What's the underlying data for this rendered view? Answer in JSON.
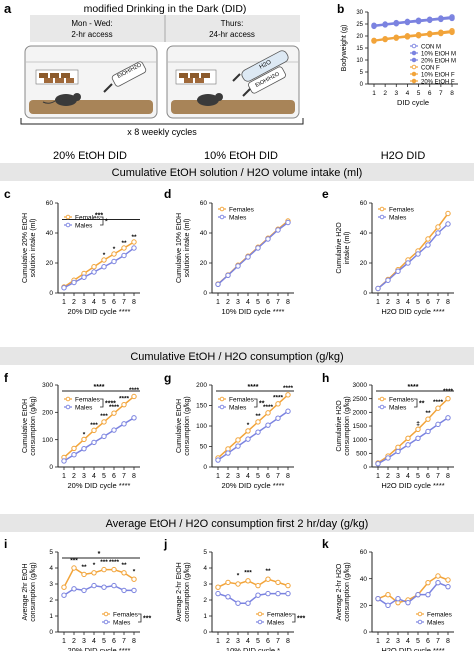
{
  "colors": {
    "female": "#f2a43a",
    "male": "#7b83e0",
    "banner": "#e6e6e6",
    "axis": "#222222"
  },
  "panel_a": {
    "letter": "a",
    "title": "modified Drinking in the Dark (DID)",
    "left_caption_1": "Mon - Wed:",
    "left_caption_2": "2-hr access",
    "right_caption_1": "Thurs:",
    "right_caption_2": "24-hr access",
    "bottle_label_1": "EtOH/H2O",
    "bottle_label_2": "H2O",
    "bottle_label_3": "EtOH/H2O",
    "cycles": "x 8 weekly cycles",
    "icons": [
      "cage-icon",
      "mouse-icon",
      "bottle-icon",
      "food-pellet-icon"
    ]
  },
  "column_titles": [
    "20% EtOH DID",
    "10% EtOH DID",
    "H2O DID"
  ],
  "sections": [
    "Cumulative EtOH solution / H2O volume intake (ml)",
    "Cumulative EtOH / H2O consumption (g/kg)",
    "Average  EtOH / H2O consumption first 2 hr/day (g/kg)"
  ],
  "chart_data": [
    {
      "id": "b",
      "type": "line",
      "xlabel": "DID cycle",
      "ylabel": "Bodyweight (g)",
      "x": [
        1,
        2,
        3,
        4,
        5,
        6,
        7,
        8
      ],
      "ylim": [
        0,
        30
      ],
      "yticks": [
        0,
        5,
        10,
        15,
        20,
        25,
        30
      ],
      "legend_position": "bottom-right",
      "series": [
        {
          "name": "CON M",
          "sex": "male",
          "style": "open",
          "values": [
            24.5,
            25,
            25.6,
            26.1,
            26.6,
            27,
            27.5,
            28
          ]
        },
        {
          "name": "10% EtOH M",
          "sex": "male",
          "style": "filled",
          "values": [
            24.2,
            24.8,
            25.4,
            25.9,
            26.3,
            26.8,
            27.2,
            27.6
          ]
        },
        {
          "name": "20% EtOH M",
          "sex": "male",
          "style": "filled",
          "values": [
            24,
            24.6,
            25.1,
            25.6,
            26,
            26.5,
            26.9,
            27.3
          ]
        },
        {
          "name": "CON F",
          "sex": "female",
          "style": "open",
          "values": [
            18.2,
            18.9,
            19.5,
            20.1,
            20.6,
            21.1,
            21.6,
            22.2
          ]
        },
        {
          "name": "10% EtOH F",
          "sex": "female",
          "style": "filled",
          "values": [
            18,
            18.7,
            19.3,
            19.8,
            20.3,
            20.8,
            21.3,
            21.8
          ]
        },
        {
          "name": "20% EtOH F",
          "sex": "female",
          "style": "filled",
          "values": [
            17.9,
            18.5,
            19.1,
            19.6,
            20.1,
            20.6,
            21,
            21.5
          ]
        }
      ]
    },
    {
      "id": "c",
      "type": "line",
      "xlabel": "20% DID cycle ****",
      "ylabel": "Cumulative 20% EtOH solution intake (ml)",
      "x": [
        1,
        2,
        3,
        4,
        5,
        6,
        7,
        8
      ],
      "ylim": [
        0,
        60
      ],
      "yticks": [
        0,
        20,
        40,
        60
      ],
      "legend_position": "top-left",
      "series": [
        {
          "name": "Females",
          "sex": "female",
          "values": [
            4,
            8.5,
            13,
            17.5,
            22,
            26,
            30,
            34
          ]
        },
        {
          "name": "Males",
          "sex": "male",
          "values": [
            3.5,
            7,
            10.5,
            14,
            17.5,
            21,
            25,
            30
          ]
        }
      ],
      "annotations": [
        {
          "text": "*",
          "x": 5,
          "y": 24
        },
        {
          "text": "*",
          "x": 6,
          "y": 28
        },
        {
          "text": "**",
          "x": 7,
          "y": 32
        },
        {
          "text": "**",
          "x": 8,
          "y": 36
        }
      ],
      "brackets": [
        {
          "text": "*"
        }
      ],
      "lines": [
        {
          "text": "***",
          "y": 49
        }
      ]
    },
    {
      "id": "d",
      "type": "line",
      "xlabel": "10% DID cycle ****",
      "ylabel": "Cumulative 10% EtOH solution intake (ml)",
      "x": [
        1,
        2,
        3,
        4,
        5,
        6,
        7,
        8
      ],
      "ylim": [
        0,
        60
      ],
      "yticks": [
        0,
        20,
        40,
        60
      ],
      "legend_position": "top-left",
      "series": [
        {
          "name": "Females",
          "sex": "female",
          "values": [
            6,
            12,
            18.5,
            24.5,
            30.5,
            36.5,
            42.5,
            48
          ]
        },
        {
          "name": "Males",
          "sex": "male",
          "values": [
            5.8,
            11.8,
            18,
            24,
            30,
            36,
            42,
            47
          ]
        }
      ]
    },
    {
      "id": "e",
      "type": "line",
      "xlabel": "H2O DID cycle ****",
      "ylabel": "Cumulative H2O intake (ml)",
      "x": [
        1,
        2,
        3,
        4,
        5,
        6,
        7,
        8
      ],
      "ylim": [
        0,
        60
      ],
      "yticks": [
        0,
        20,
        40,
        60
      ],
      "legend_position": "top-left",
      "series": [
        {
          "name": "Females",
          "sex": "female",
          "values": [
            3,
            9,
            15.5,
            22,
            28,
            36,
            44,
            53
          ]
        },
        {
          "name": "Males",
          "sex": "male",
          "values": [
            3,
            8.5,
            14.5,
            20,
            26,
            32,
            40,
            46
          ]
        }
      ]
    },
    {
      "id": "f",
      "type": "line",
      "xlabel": "20% DID cycle ****",
      "ylabel": "Cumulative EtOH consumption (g/kg)",
      "x": [
        1,
        2,
        3,
        4,
        5,
        6,
        7,
        8
      ],
      "ylim": [
        0,
        300
      ],
      "yticks": [
        0,
        100,
        200,
        300
      ],
      "legend_position": "top-left",
      "series": [
        {
          "name": "Females",
          "sex": "female",
          "values": [
            35,
            68,
            101,
            134,
            165,
            197,
            228,
            258
          ]
        },
        {
          "name": "Males",
          "sex": "male",
          "values": [
            22,
            45,
            67,
            90,
            112,
            135,
            158,
            180
          ]
        }
      ],
      "annotations": [
        {
          "text": "*",
          "x": 3,
          "y": 112
        },
        {
          "text": "***",
          "x": 4,
          "y": 147
        },
        {
          "text": "***",
          "x": 5,
          "y": 180
        },
        {
          "text": "****",
          "x": 6,
          "y": 213
        },
        {
          "text": "****",
          "x": 7,
          "y": 244
        },
        {
          "text": "****",
          "x": 8,
          "y": 274
        }
      ],
      "brackets": [
        {
          "text": "****"
        }
      ],
      "lines": [
        {
          "text": "****",
          "y": 345
        }
      ]
    },
    {
      "id": "g",
      "type": "line",
      "xlabel": "20% DID cycle ****",
      "ylabel": "Cumulative EtOH consumption (g/kg)",
      "x": [
        1,
        2,
        3,
        4,
        5,
        6,
        7,
        8
      ],
      "ylim": [
        0,
        200
      ],
      "yticks": [
        0,
        50,
        100,
        150,
        200
      ],
      "legend_position": "top-left",
      "series": [
        {
          "name": "Females",
          "sex": "female",
          "values": [
            22,
            44,
            66,
            88,
            110,
            132,
            154,
            176
          ]
        },
        {
          "name": "Males",
          "sex": "male",
          "values": [
            17,
            34,
            51,
            68,
            85,
            102,
            119,
            136
          ]
        }
      ],
      "annotations": [
        {
          "text": "*",
          "x": 4,
          "y": 97
        },
        {
          "text": "**",
          "x": 5,
          "y": 120
        },
        {
          "text": "****",
          "x": 6,
          "y": 142
        },
        {
          "text": "****",
          "x": 7,
          "y": 165
        },
        {
          "text": "****",
          "x": 8,
          "y": 188
        }
      ],
      "brackets": [
        {
          "text": "**"
        }
      ],
      "lines": [
        {
          "text": "****",
          "y": 228
        }
      ]
    },
    {
      "id": "h",
      "type": "line",
      "xlabel": "H2O DID cycle ****",
      "ylabel": "Cumulative H2O consumption (g/kg)",
      "x": [
        1,
        2,
        3,
        4,
        5,
        6,
        7,
        8
      ],
      "ylim": [
        0,
        3000
      ],
      "yticks": [
        0,
        500,
        1000,
        1500,
        2000,
        2500,
        3000
      ],
      "legend_position": "top-left",
      "series": [
        {
          "name": "Females",
          "sex": "female",
          "values": [
            150,
            400,
            720,
            1050,
            1380,
            1750,
            2150,
            2500
          ]
        },
        {
          "name": "Males",
          "sex": "male",
          "values": [
            120,
            330,
            570,
            810,
            1050,
            1300,
            1560,
            1800
          ]
        }
      ],
      "annotations": [
        {
          "text": "‡",
          "x": 5,
          "y": 1520
        },
        {
          "text": "**",
          "x": 6,
          "y": 1900
        },
        {
          "text": "****",
          "x": 7,
          "y": 2300
        },
        {
          "text": "****",
          "x": 8,
          "y": 2700
        }
      ],
      "brackets": [
        {
          "text": "**"
        }
      ],
      "lines": [
        {
          "text": "****",
          "y": 3430
        }
      ]
    },
    {
      "id": "i",
      "type": "line",
      "xlabel": "20% DID cycle ****",
      "ylabel": "Average 2hr EtOH consumption (g/kg)",
      "x": [
        1,
        2,
        3,
        4,
        5,
        6,
        7,
        8
      ],
      "ylim": [
        0,
        5
      ],
      "yticks": [
        0,
        1,
        2,
        3,
        4,
        5
      ],
      "legend_position": "bottom-right",
      "series": [
        {
          "name": "Females",
          "sex": "female",
          "values": [
            2.8,
            4,
            3.6,
            3.7,
            3.9,
            3.9,
            3.7,
            3.3
          ]
        },
        {
          "name": "Males",
          "sex": "male",
          "values": [
            2.3,
            2.7,
            2.6,
            2.9,
            2.8,
            2.9,
            2.6,
            2.6
          ]
        }
      ],
      "annotations": [
        {
          "text": "***",
          "x": 2,
          "y": 4.35
        },
        {
          "text": "**",
          "x": 3,
          "y": 3.95
        },
        {
          "text": "*",
          "x": 4,
          "y": 4.05
        },
        {
          "text": "***",
          "x": 5,
          "y": 4.25
        },
        {
          "text": "****",
          "x": 6,
          "y": 4.25
        },
        {
          "text": "**",
          "x": 7,
          "y": 4.05
        },
        {
          "text": "*",
          "x": 8,
          "y": 3.65
        }
      ],
      "brackets": [
        {
          "text": "***"
        }
      ],
      "lines": [
        {
          "text": "*",
          "y": 4.9
        }
      ]
    },
    {
      "id": "j",
      "type": "line",
      "xlabel": "10% DID cycle *",
      "ylabel": "Average 2-hr EtOH consumption (g/kg)",
      "x": [
        1,
        2,
        3,
        4,
        5,
        6,
        7,
        8
      ],
      "ylim": [
        0,
        5
      ],
      "yticks": [
        0,
        1,
        2,
        3,
        4,
        5
      ],
      "legend_position": "bottom-right",
      "series": [
        {
          "name": "Females",
          "sex": "female",
          "values": [
            2.8,
            3.1,
            3,
            3.2,
            2.9,
            3.3,
            3.1,
            2.9
          ]
        },
        {
          "name": "Males",
          "sex": "male",
          "values": [
            2.4,
            2.2,
            1.8,
            1.8,
            2.3,
            2.4,
            2.4,
            2.4
          ]
        }
      ],
      "annotations": [
        {
          "text": "*",
          "x": 3,
          "y": 3.4
        },
        {
          "text": "***",
          "x": 4,
          "y": 3.6
        },
        {
          "text": "**",
          "x": 6,
          "y": 3.7
        }
      ],
      "brackets": [
        {
          "text": "***"
        }
      ]
    },
    {
      "id": "k",
      "type": "line",
      "xlabel": "H2O DID cycle ****",
      "ylabel": "Average 2-hr H2O consumption (g/kg)",
      "x": [
        1,
        2,
        3,
        4,
        5,
        6,
        7,
        8
      ],
      "ylim": [
        0,
        60
      ],
      "yticks": [
        0,
        20,
        40,
        60
      ],
      "legend_position": "bottom-right",
      "series": [
        {
          "name": "Females",
          "sex": "female",
          "values": [
            25,
            28,
            22,
            24,
            28,
            37,
            42,
            39
          ]
        },
        {
          "name": "Males",
          "sex": "male",
          "values": [
            25,
            20,
            25,
            22,
            28,
            28,
            37,
            34
          ]
        }
      ]
    }
  ]
}
